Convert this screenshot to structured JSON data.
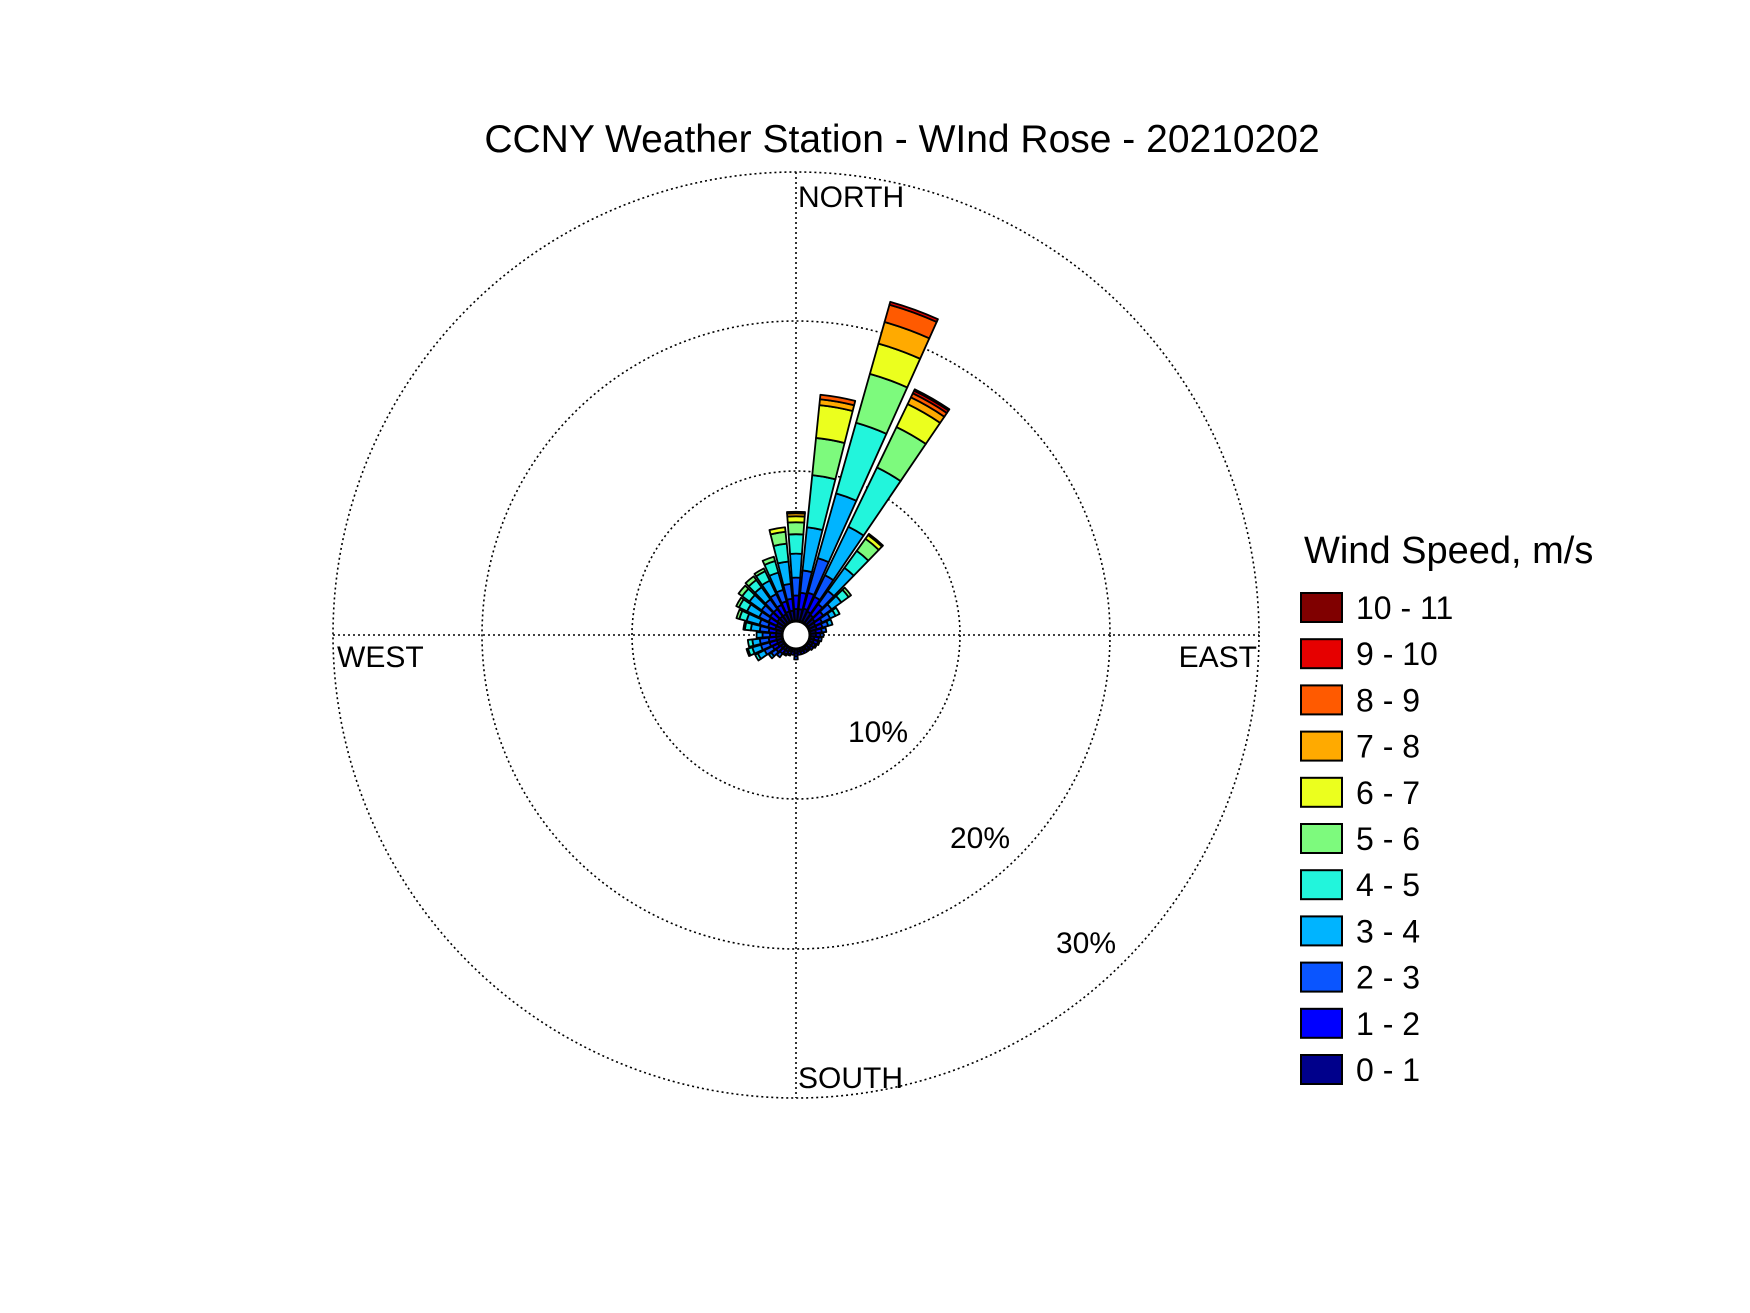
{
  "chart_data": {
    "type": "wind-rose",
    "title": "CCNY Weather Station - WInd Rose - 20210202",
    "directions": {
      "north": "NORTH",
      "east": "EAST",
      "south": "SOUTH",
      "west": "WEST"
    },
    "radial_ticks": [
      {
        "value": 10,
        "label": "10%"
      },
      {
        "value": 20,
        "label": "20%"
      },
      {
        "value": 30,
        "label": "30%"
      }
    ],
    "r_max": 30,
    "legend_title": "Wind Speed, m/s",
    "bins": [
      {
        "label": "0 - 1",
        "color": "#00008b"
      },
      {
        "label": "1 - 2",
        "color": "#0000ff"
      },
      {
        "label": "2 - 3",
        "color": "#0a55ff"
      },
      {
        "label": "3 - 4",
        "color": "#00b4ff"
      },
      {
        "label": "4 - 5",
        "color": "#22f5dc"
      },
      {
        "label": "5 - 6",
        "color": "#7dfa7d"
      },
      {
        "label": "6 - 7",
        "color": "#ebff1e"
      },
      {
        "label": "7 - 8",
        "color": "#ffaa00"
      },
      {
        "label": "8 - 9",
        "color": "#ff5a00"
      },
      {
        "label": "9 - 10",
        "color": "#e60000"
      },
      {
        "label": "10 - 11",
        "color": "#800000"
      }
    ],
    "sectors": [
      {
        "direction_deg": 0,
        "cumulative_pct": [
          0.8,
          1.7,
          2.9,
          4.5,
          5.8,
          6.6,
          7.0,
          7.2,
          7.3
        ]
      },
      {
        "direction_deg": 10,
        "cumulative_pct": [
          0.8,
          1.9,
          3.4,
          6.3,
          9.8,
          12.3,
          14.5,
          14.9,
          15.2
        ]
      },
      {
        "direction_deg": 20,
        "cumulative_pct": [
          0.9,
          2.0,
          4.4,
          8.9,
          13.8,
          17.2,
          19.3,
          20.8,
          22.0,
          22.2
        ]
      },
      {
        "direction_deg": 30,
        "cumulative_pct": [
          0.8,
          1.9,
          3.5,
          7.1,
          11.5,
          14.5,
          16.2,
          16.7,
          17.0,
          17.2,
          17.3
        ]
      },
      {
        "direction_deg": 40,
        "cumulative_pct": [
          0.7,
          1.6,
          2.7,
          4.6,
          6.0,
          7.0,
          7.3,
          7.4
        ]
      },
      {
        "direction_deg": 50,
        "cumulative_pct": [
          0.6,
          1.3,
          2.0,
          2.8,
          3.4,
          3.6
        ]
      },
      {
        "direction_deg": 60,
        "cumulative_pct": [
          0.5,
          1.0,
          1.6,
          2.0,
          2.3
        ]
      },
      {
        "direction_deg": 70,
        "cumulative_pct": [
          0.5,
          0.9,
          1.3,
          1.6
        ]
      },
      {
        "direction_deg": 80,
        "cumulative_pct": [
          0.4,
          0.8,
          1.1
        ]
      },
      {
        "direction_deg": 90,
        "cumulative_pct": [
          0.4,
          0.7,
          0.9
        ]
      },
      {
        "direction_deg": 100,
        "cumulative_pct": [
          0.3,
          0.6,
          0.8
        ]
      },
      {
        "direction_deg": 110,
        "cumulative_pct": [
          0.3,
          0.6,
          0.7
        ]
      },
      {
        "direction_deg": 120,
        "cumulative_pct": [
          0.3,
          0.5,
          0.6
        ]
      },
      {
        "direction_deg": 130,
        "cumulative_pct": [
          0.3,
          0.5
        ]
      },
      {
        "direction_deg": 140,
        "cumulative_pct": [
          0.3,
          0.4
        ]
      },
      {
        "direction_deg": 150,
        "cumulative_pct": [
          0.2,
          0.4
        ]
      },
      {
        "direction_deg": 160,
        "cumulative_pct": [
          0.2,
          0.4
        ]
      },
      {
        "direction_deg": 170,
        "cumulative_pct": [
          0.2,
          0.4
        ]
      },
      {
        "direction_deg": 180,
        "cumulative_pct": [
          0.3,
          0.5,
          0.7
        ]
      },
      {
        "direction_deg": 190,
        "cumulative_pct": [
          0.2,
          0.4
        ]
      },
      {
        "direction_deg": 200,
        "cumulative_pct": [
          0.2,
          0.4,
          0.5
        ]
      },
      {
        "direction_deg": 210,
        "cumulative_pct": [
          0.3,
          0.5,
          0.6
        ]
      },
      {
        "direction_deg": 220,
        "cumulative_pct": [
          0.3,
          0.6,
          0.9
        ]
      },
      {
        "direction_deg": 230,
        "cumulative_pct": [
          0.3,
          0.7,
          1.1,
          1.3
        ]
      },
      {
        "direction_deg": 240,
        "cumulative_pct": [
          0.4,
          0.8,
          1.4,
          1.9,
          2.1
        ]
      },
      {
        "direction_deg": 250,
        "cumulative_pct": [
          0.4,
          0.9,
          1.5,
          2.1,
          2.4,
          2.5
        ]
      },
      {
        "direction_deg": 260,
        "cumulative_pct": [
          0.4,
          0.9,
          1.5,
          2.0,
          2.3
        ]
      },
      {
        "direction_deg": 270,
        "cumulative_pct": [
          0.4,
          0.8,
          1.3,
          1.7
        ]
      },
      {
        "direction_deg": 280,
        "cumulative_pct": [
          0.4,
          0.9,
          1.5,
          2.1,
          2.5,
          2.6
        ]
      },
      {
        "direction_deg": 290,
        "cumulative_pct": [
          0.5,
          1.0,
          1.6,
          2.5,
          3.0,
          3.2
        ]
      },
      {
        "direction_deg": 300,
        "cumulative_pct": [
          0.5,
          1.1,
          1.8,
          2.7,
          3.3,
          3.5
        ]
      },
      {
        "direction_deg": 310,
        "cumulative_pct": [
          0.6,
          1.2,
          1.9,
          2.9,
          3.5,
          3.8
        ]
      },
      {
        "direction_deg": 320,
        "cumulative_pct": [
          0.6,
          1.2,
          2.0,
          3.0,
          3.6,
          3.9
        ]
      },
      {
        "direction_deg": 330,
        "cumulative_pct": [
          0.6,
          1.3,
          2.1,
          3.1,
          3.8,
          4.0
        ]
      },
      {
        "direction_deg": 340,
        "cumulative_pct": [
          0.7,
          1.4,
          2.2,
          3.4,
          4.2,
          4.5
        ]
      },
      {
        "direction_deg": 350,
        "cumulative_pct": [
          0.7,
          1.5,
          2.5,
          4.0,
          5.2,
          6.0,
          6.3
        ]
      }
    ]
  }
}
